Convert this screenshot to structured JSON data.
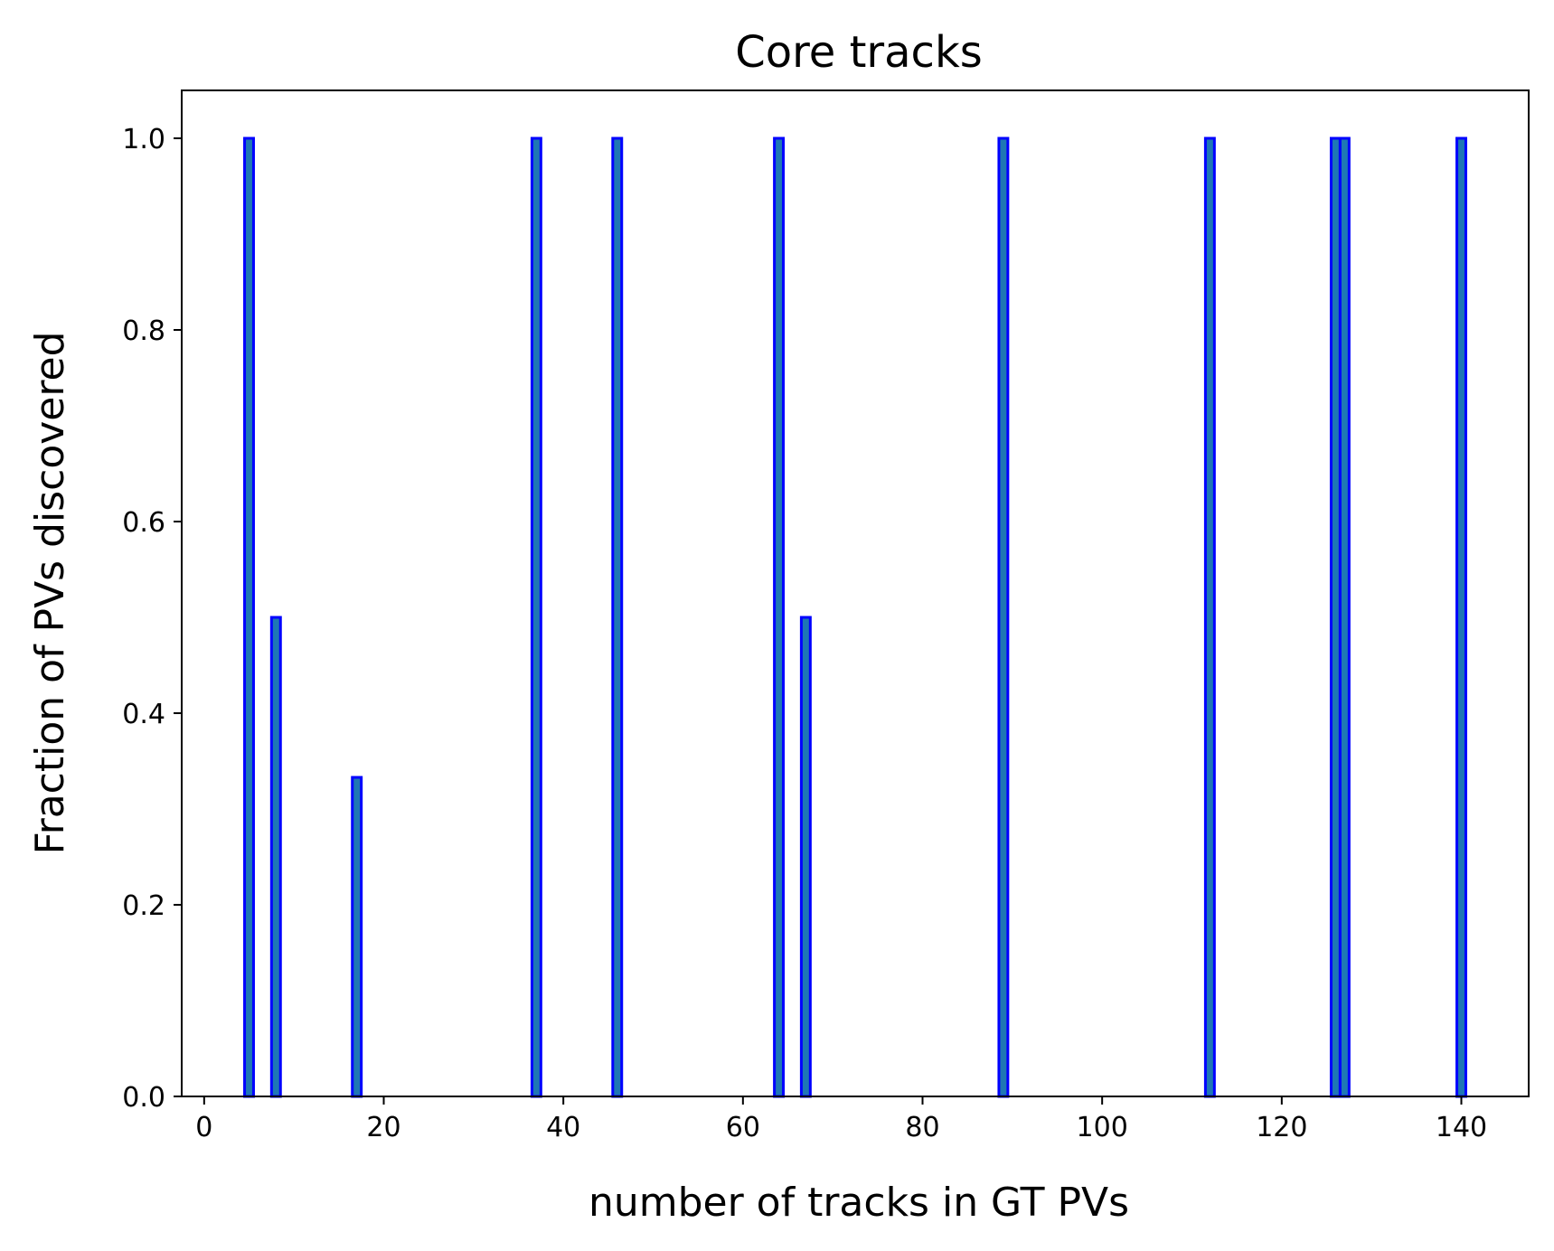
{
  "chart_data": {
    "type": "bar",
    "title": "Core tracks",
    "xlabel": "number of tracks in GT PVs",
    "ylabel": "Fraction of PVs discovered",
    "xlim": [
      -2.5,
      147.5
    ],
    "ylim": [
      0,
      1.05
    ],
    "xticks": [
      0,
      20,
      40,
      60,
      80,
      100,
      120,
      140
    ],
    "yticks": [
      0.0,
      0.2,
      0.4,
      0.6,
      0.8,
      1.0
    ],
    "xtick_labels": [
      "0",
      "20",
      "40",
      "60",
      "80",
      "100",
      "120",
      "140"
    ],
    "ytick_labels": [
      "0.0",
      "0.2",
      "0.4",
      "0.6",
      "0.8",
      "1.0"
    ],
    "grid": false,
    "bar_width": 1,
    "fill_color": "#1f77b4",
    "edge_color": "#0000ff",
    "x": [
      5,
      8,
      10,
      14,
      15,
      17,
      19,
      20,
      21,
      22,
      24,
      25,
      28,
      29,
      31,
      32,
      34,
      35,
      37,
      39,
      41,
      42,
      44,
      46,
      48,
      49,
      50,
      55,
      59,
      64,
      67,
      73,
      74,
      80,
      83,
      86,
      89,
      105,
      107,
      109,
      110,
      112,
      118,
      126,
      127,
      130,
      131,
      140
    ],
    "values": [
      1.0,
      0.5,
      0.0,
      0.0,
      0.0,
      0.333,
      0.0,
      0.0,
      0.0,
      0.0,
      0.0,
      0.0,
      0.0,
      0.0,
      0.0,
      0.0,
      0.0,
      0.0,
      1.0,
      0.0,
      0.0,
      0.0,
      0.0,
      1.0,
      0.0,
      0.0,
      0.0,
      0.0,
      0.0,
      1.0,
      0.5,
      0.0,
      0.0,
      0.0,
      0.0,
      0.0,
      1.0,
      0.0,
      0.0,
      0.0,
      0.0,
      1.0,
      0.0,
      1.0,
      1.0,
      0.0,
      0.0,
      1.0
    ]
  }
}
